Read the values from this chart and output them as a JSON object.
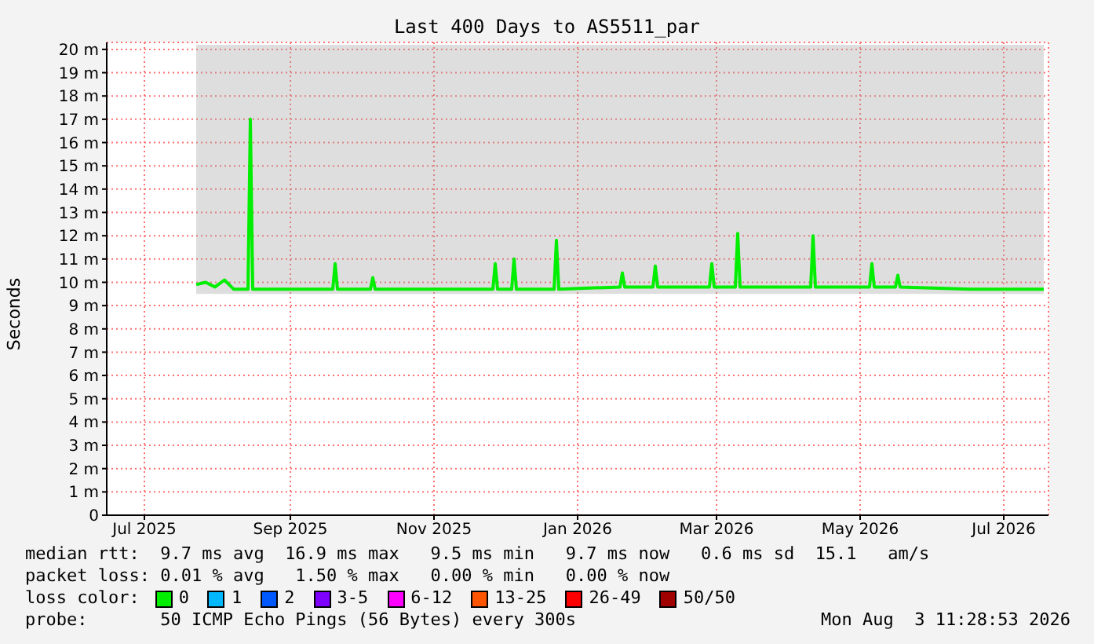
{
  "chart_data": {
    "type": "line",
    "title": "Last 400 Days to AS5511_par",
    "ylabel": "Seconds",
    "legend_title": "loss color:",
    "legend": "bottom",
    "grid": true,
    "marker": "none",
    "line_style": "solid",
    "xlim": [
      "2025-06-29",
      "2026-08-03"
    ],
    "xticks": [
      {
        "value": "2025-07-15",
        "label": "Jul 2025"
      },
      {
        "value": "2025-09-15",
        "label": "Sep 2025"
      },
      {
        "value": "2025-11-15",
        "label": "Nov 2025"
      },
      {
        "value": "2026-01-15",
        "label": "Jan 2026"
      },
      {
        "value": "2026-03-15",
        "label": "Mar 2026"
      },
      {
        "value": "2026-05-15",
        "label": "May 2026"
      },
      {
        "value": "2026-07-15",
        "label": "Jul 2026"
      }
    ],
    "ylim": [
      0,
      20.3
    ],
    "yticks": [
      0,
      {
        "value": 1,
        "label": "1 m"
      },
      {
        "value": 2,
        "label": "2 m"
      },
      {
        "value": 3,
        "label": "3 m"
      },
      {
        "value": 4,
        "label": "4 m"
      },
      {
        "value": 5,
        "label": "5 m"
      },
      {
        "value": 6,
        "label": "6 m"
      },
      {
        "value": 7,
        "label": "7 m"
      },
      {
        "value": 8,
        "label": "8 m"
      },
      {
        "value": 9,
        "label": "9 m"
      },
      {
        "value": 10,
        "label": "10 m"
      },
      {
        "value": 11,
        "label": "11 m"
      },
      {
        "value": 12,
        "label": "12 m"
      },
      {
        "value": 13,
        "label": "13 m"
      },
      {
        "value": 14,
        "label": "14 m"
      },
      {
        "value": 15,
        "label": "15 m"
      },
      {
        "value": 16,
        "label": "16 m"
      },
      {
        "value": 17,
        "label": "17 m"
      },
      {
        "value": 18,
        "label": "18 m"
      },
      {
        "value": 19,
        "label": "19 m"
      },
      {
        "value": 20,
        "label": "20 m"
      }
    ],
    "x": [
      "2025-08-06",
      "2025-08-10",
      "2025-08-14",
      "2025-08-18",
      "2025-08-22",
      "2025-08-28",
      "2025-08-29",
      "2025-08-30",
      "2025-09-15",
      "2025-10-03",
      "2025-10-04",
      "2025-10-05",
      "2025-10-19",
      "2025-10-20",
      "2025-10-21",
      "2025-11-15",
      "2025-12-10",
      "2025-12-11",
      "2025-12-12",
      "2025-12-18",
      "2025-12-19",
      "2025-12-20",
      "2026-01-05",
      "2026-01-06",
      "2026-01-07",
      "2026-02-02",
      "2026-02-03",
      "2026-02-04",
      "2026-02-16",
      "2026-02-17",
      "2026-02-18",
      "2026-03-12",
      "2026-03-13",
      "2026-03-14",
      "2026-03-23",
      "2026-03-24",
      "2026-03-25",
      "2026-04-24",
      "2026-04-25",
      "2026-04-26",
      "2026-05-19",
      "2026-05-20",
      "2026-05-21",
      "2026-05-30",
      "2026-05-31",
      "2026-06-01",
      "2026-07-01",
      "2026-08-01"
    ],
    "series": [
      {
        "name": "0",
        "color": "#00ee00",
        "values": [
          9.9,
          10.0,
          9.8,
          10.1,
          9.7,
          9.7,
          17.0,
          9.7,
          9.7,
          9.7,
          10.8,
          9.7,
          9.7,
          10.2,
          9.7,
          9.7,
          9.7,
          10.8,
          9.7,
          9.7,
          11.0,
          9.7,
          9.7,
          11.8,
          9.7,
          9.8,
          10.4,
          9.8,
          9.8,
          10.7,
          9.8,
          9.8,
          10.8,
          9.8,
          9.8,
          12.1,
          9.8,
          9.8,
          12.0,
          9.8,
          9.8,
          10.8,
          9.8,
          9.8,
          10.3,
          9.8,
          9.7,
          9.7
        ],
        "lower": [
          9.5,
          9.5,
          9.5,
          9.5,
          9.5,
          9.5,
          9.5,
          9.5,
          9.5,
          9.5,
          9.5,
          9.5,
          9.5,
          9.5,
          9.5,
          9.5,
          9.5,
          9.5,
          9.5,
          9.5,
          9.5,
          9.5,
          9.5,
          9.5,
          9.5,
          9.5,
          9.5,
          9.5,
          9.5,
          9.5,
          9.5,
          9.5,
          9.5,
          9.5,
          9.5,
          9.5,
          9.5,
          9.5,
          9.5,
          9.5,
          9.5,
          9.5,
          9.5,
          9.5,
          9.5,
          9.5,
          9.5,
          9.5
        ],
        "upper": [
          20.2,
          20.2,
          20.2,
          20.2,
          20.2,
          20.2,
          20.2,
          20.2,
          20.2,
          20.2,
          20.2,
          20.2,
          20.2,
          20.2,
          20.2,
          20.2,
          20.2,
          20.2,
          20.2,
          20.2,
          20.2,
          20.2,
          20.2,
          20.2,
          20.2,
          20.2,
          20.2,
          20.2,
          20.2,
          20.2,
          20.2,
          20.2,
          20.2,
          20.2,
          20.2,
          20.2,
          20.2,
          20.2,
          20.2,
          20.2,
          20.2,
          20.2,
          20.2,
          20.2,
          20.2,
          20.2,
          20.2,
          20.2
        ]
      },
      {
        "name": "1",
        "color": "#00b8ff",
        "values": [
          null,
          null,
          null,
          null,
          null,
          null,
          null,
          null,
          null,
          null,
          null,
          null,
          null,
          null,
          null,
          null,
          null,
          null,
          null,
          null,
          null,
          null,
          null,
          null,
          null,
          null,
          null,
          null,
          null,
          null,
          null,
          null,
          null,
          null,
          null,
          null,
          null,
          null,
          null,
          null,
          null,
          null,
          null,
          null,
          null,
          null,
          null,
          null
        ]
      },
      {
        "name": "2",
        "color": "#0059ff",
        "values": [
          null,
          null,
          null,
          null,
          null,
          null,
          null,
          null,
          null,
          null,
          null,
          null,
          null,
          null,
          null,
          null,
          null,
          null,
          null,
          null,
          null,
          null,
          null,
          null,
          null,
          null,
          null,
          null,
          null,
          null,
          null,
          null,
          null,
          null,
          null,
          null,
          null,
          null,
          null,
          null,
          null,
          null,
          null,
          null,
          null,
          null,
          null,
          null
        ]
      },
      {
        "name": "3-5",
        "color": "#7e00ff",
        "values": [
          null,
          null,
          null,
          null,
          null,
          null,
          null,
          null,
          null,
          null,
          null,
          null,
          null,
          null,
          null,
          null,
          null,
          null,
          null,
          null,
          null,
          null,
          null,
          null,
          null,
          null,
          null,
          null,
          null,
          null,
          null,
          null,
          null,
          null,
          null,
          null,
          null,
          null,
          null,
          null,
          null,
          null,
          null,
          null,
          null,
          null,
          null,
          null
        ]
      },
      {
        "name": "6-12",
        "color": "#ff00ff",
        "values": [
          null,
          null,
          null,
          null,
          null,
          null,
          null,
          null,
          null,
          null,
          null,
          null,
          null,
          null,
          null,
          null,
          null,
          null,
          null,
          null,
          null,
          null,
          null,
          null,
          null,
          null,
          null,
          null,
          null,
          null,
          null,
          null,
          null,
          null,
          null,
          null,
          null,
          null,
          null,
          null,
          null,
          null,
          null,
          null,
          null,
          null,
          null,
          null
        ]
      },
      {
        "name": "13-25",
        "color": "#ff5500",
        "values": [
          null,
          null,
          null,
          null,
          null,
          null,
          null,
          null,
          null,
          null,
          null,
          null,
          null,
          null,
          null,
          null,
          null,
          null,
          null,
          null,
          null,
          null,
          null,
          null,
          null,
          null,
          null,
          null,
          null,
          null,
          null,
          null,
          null,
          null,
          null,
          null,
          null,
          null,
          null,
          null,
          null,
          null,
          null,
          null,
          null,
          null,
          null,
          null
        ]
      },
      {
        "name": "26-49",
        "color": "#ff0000",
        "values": [
          null,
          null,
          null,
          null,
          null,
          null,
          null,
          null,
          null,
          null,
          null,
          null,
          null,
          null,
          null,
          null,
          null,
          null,
          null,
          null,
          null,
          null,
          null,
          null,
          null,
          null,
          null,
          null,
          null,
          null,
          null,
          null,
          null,
          null,
          null,
          null,
          null,
          null,
          null,
          null,
          null,
          null,
          null,
          null,
          null,
          null,
          null,
          null
        ]
      },
      {
        "name": "50/50",
        "color": "#a10000",
        "values": [
          null,
          null,
          null,
          null,
          null,
          null,
          null,
          null,
          null,
          null,
          null,
          null,
          null,
          null,
          null,
          null,
          null,
          null,
          null,
          null,
          null,
          null,
          null,
          null,
          null,
          null,
          null,
          null,
          null,
          null,
          null,
          null,
          null,
          null,
          null,
          null,
          null,
          null,
          null,
          null,
          null,
          null,
          null,
          null,
          null,
          null,
          null,
          null
        ]
      }
    ],
    "annotations": [
      "median rtt:  9.7 ms avg  16.9 ms max   9.5 ms min   9.7 ms now   0.6 ms sd  15.1   am/s",
      "packet loss: 0.01 % avg   1.50 % max   0.00 % min   0.00 % now",
      "probe:       50 ICMP Echo Pings (56 Bytes) every 300s",
      "Mon Aug  3 11:28:53 2026"
    ]
  }
}
